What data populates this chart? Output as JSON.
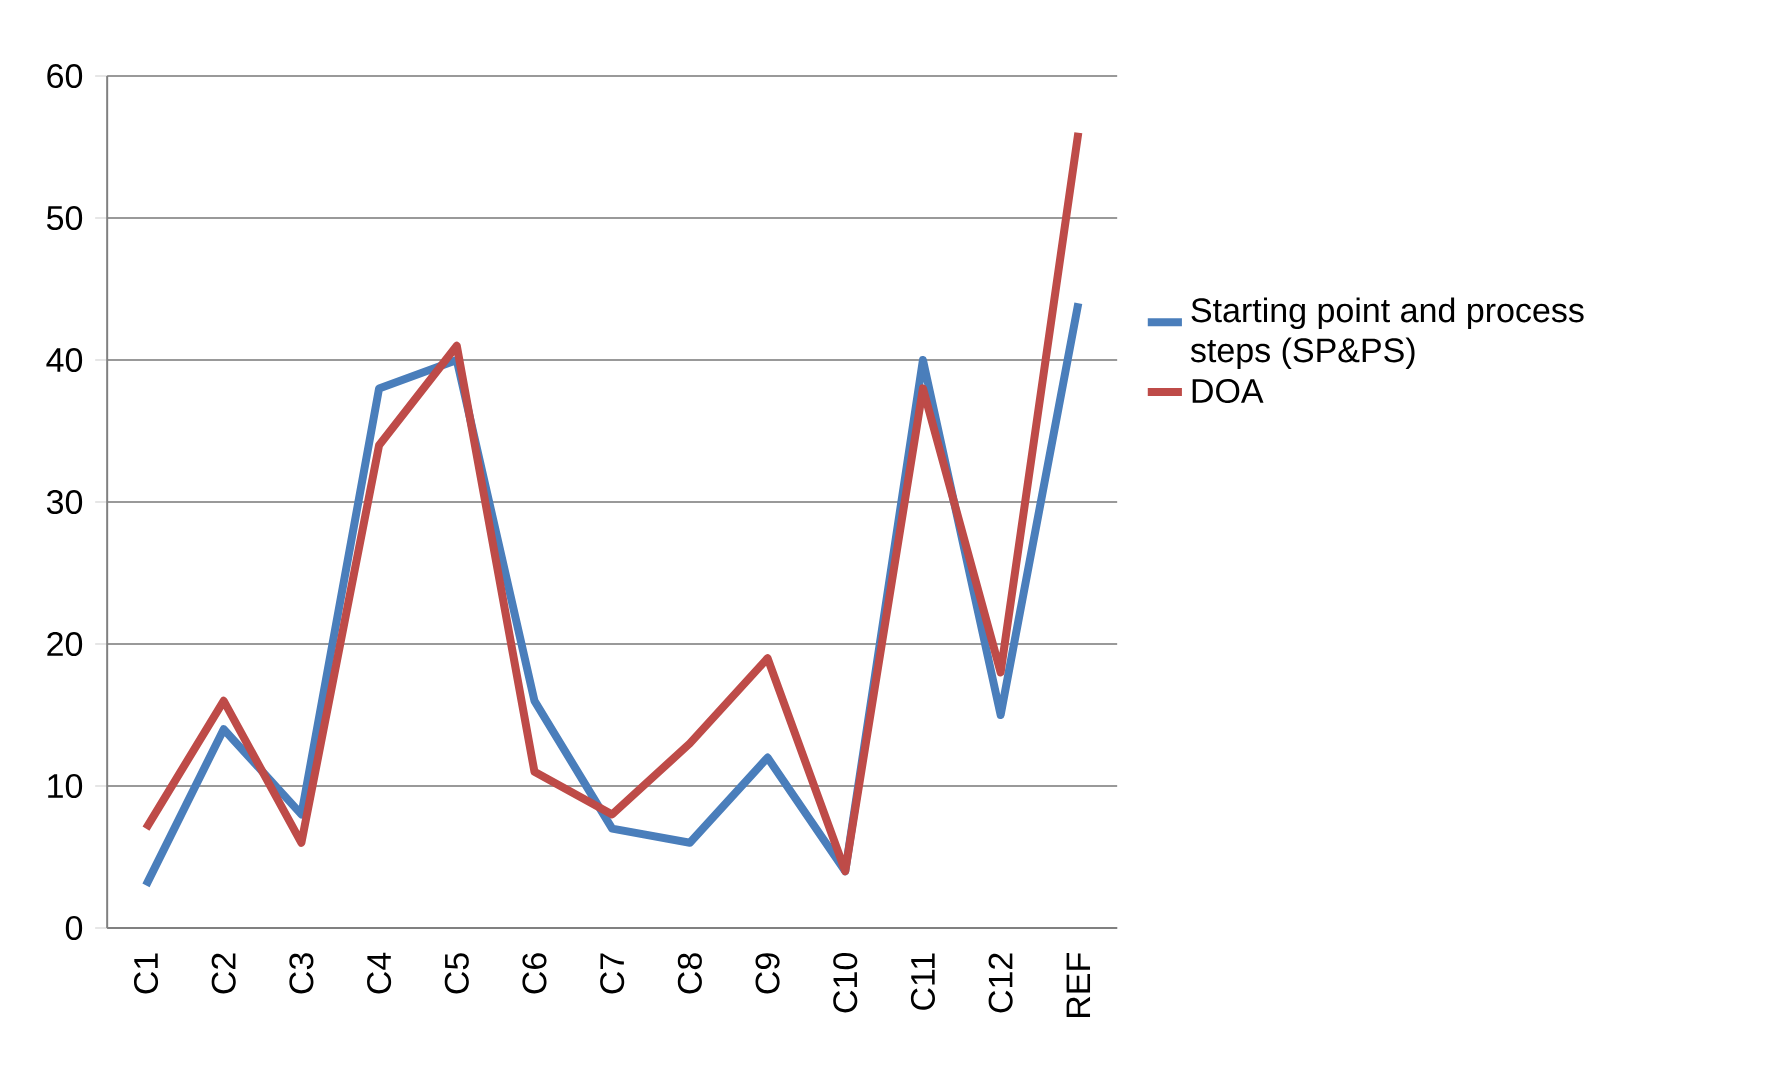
{
  "chart_data": {
    "type": "line",
    "categories": [
      "C1",
      "C2",
      "C3",
      "C4",
      "C5",
      "C6",
      "C7",
      "C8",
      "C9",
      "C10",
      "C11",
      "C12",
      "REF"
    ],
    "series": [
      {
        "name": "Starting point and process steps (SP&PS)",
        "color": "#4a7ebb",
        "values": [
          3,
          14,
          8,
          38,
          40,
          16,
          7,
          6,
          12,
          4,
          40,
          15,
          44
        ]
      },
      {
        "name": "DOA",
        "color": "#be4b48",
        "values": [
          7,
          16,
          6,
          34,
          41,
          11,
          8,
          13,
          19,
          4,
          38,
          18,
          56
        ]
      }
    ],
    "ylim": [
      0,
      60
    ],
    "yticks": [
      0,
      10,
      20,
      30,
      40,
      50,
      60
    ],
    "grid": "y",
    "legend": "right",
    "marker": "none",
    "line_style": "solid"
  }
}
